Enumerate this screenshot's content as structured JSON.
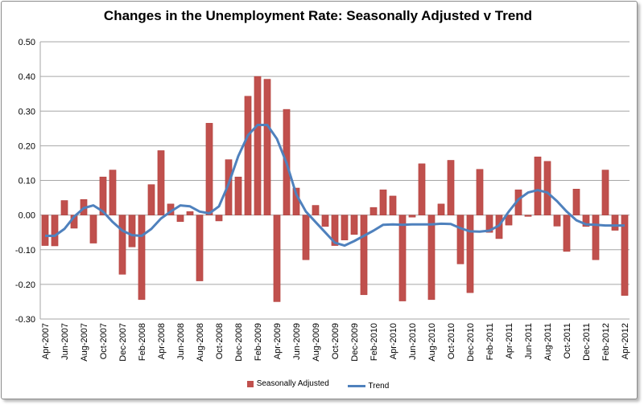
{
  "chart_data": {
    "type": "bar",
    "title": "Changes in the Unemployment Rate: Seasonally Adjusted v Trend",
    "xlabel": "",
    "ylabel": "",
    "ylim": [
      -0.3,
      0.5
    ],
    "yticks": [
      "0.50",
      "0.40",
      "0.30",
      "0.20",
      "0.10",
      "0.00",
      "-0.10",
      "-0.20",
      "-0.30"
    ],
    "ytick_values": [
      0.5,
      0.4,
      0.3,
      0.2,
      0.1,
      0,
      -0.1,
      -0.2,
      -0.3
    ],
    "grid": true,
    "legend_position": "bottom",
    "categories": [
      "Apr-2007",
      "May-2007",
      "Jun-2007",
      "Jul-2007",
      "Aug-2007",
      "Sep-2007",
      "Oct-2007",
      "Nov-2007",
      "Dec-2007",
      "Jan-2008",
      "Feb-2008",
      "Mar-2008",
      "Apr-2008",
      "May-2008",
      "Jun-2008",
      "Jul-2008",
      "Aug-2008",
      "Sep-2008",
      "Oct-2008",
      "Nov-2008",
      "Dec-2008",
      "Jan-2009",
      "Feb-2009",
      "Mar-2009",
      "Apr-2009",
      "May-2009",
      "Jun-2009",
      "Jul-2009",
      "Aug-2009",
      "Sep-2009",
      "Oct-2009",
      "Nov-2009",
      "Dec-2009",
      "Jan-2010",
      "Feb-2010",
      "Mar-2010",
      "Apr-2010",
      "May-2010",
      "Jun-2010",
      "Jul-2010",
      "Aug-2010",
      "Sep-2010",
      "Oct-2010",
      "Nov-2010",
      "Dec-2010",
      "Jan-2011",
      "Feb-2011",
      "Mar-2011",
      "Apr-2011",
      "May-2011",
      "Jun-2011",
      "Jul-2011",
      "Aug-2011",
      "Sep-2011",
      "Oct-2011",
      "Nov-2011",
      "Dec-2011",
      "Jan-2012",
      "Feb-2012",
      "Mar-2012",
      "Apr-2012"
    ],
    "series": [
      {
        "name": "Seasonally Adjusted",
        "type": "bar",
        "color": "#C0504D",
        "values": [
          -0.088,
          -0.089,
          0.042,
          -0.038,
          0.045,
          -0.081,
          0.11,
          0.13,
          -0.171,
          -0.092,
          -0.244,
          0.088,
          0.186,
          0.032,
          -0.019,
          0.01,
          -0.19,
          0.265,
          -0.017,
          0.16,
          0.11,
          0.343,
          0.4,
          0.392,
          -0.25,
          0.305,
          0.078,
          -0.129,
          0.028,
          -0.033,
          -0.088,
          -0.072,
          -0.056,
          -0.23,
          0.022,
          0.073,
          0.055,
          -0.248,
          -0.006,
          0.148,
          -0.244,
          0.032,
          0.158,
          -0.141,
          -0.224,
          0.132,
          -0.05,
          -0.068,
          -0.029,
          0.073,
          -0.004,
          0.168,
          0.155,
          -0.032,
          -0.105,
          0.075,
          -0.033,
          -0.129,
          0.13,
          -0.044,
          -0.232
        ]
      },
      {
        "name": "Trend",
        "type": "line",
        "color": "#4F81BD",
        "values": [
          -0.06,
          -0.06,
          -0.04,
          -0.005,
          0.02,
          0.028,
          0.01,
          -0.02,
          -0.045,
          -0.058,
          -0.06,
          -0.04,
          -0.01,
          0.01,
          0.028,
          0.025,
          0.01,
          0.005,
          0.025,
          0.09,
          0.17,
          0.23,
          0.26,
          0.26,
          0.22,
          0.15,
          0.06,
          0.01,
          -0.02,
          -0.05,
          -0.08,
          -0.088,
          -0.075,
          -0.06,
          -0.045,
          -0.028,
          -0.027,
          -0.028,
          -0.027,
          -0.027,
          -0.027,
          -0.025,
          -0.026,
          -0.038,
          -0.047,
          -0.048,
          -0.045,
          -0.03,
          0.01,
          0.045,
          0.065,
          0.072,
          0.065,
          0.04,
          0.01,
          -0.015,
          -0.027,
          -0.028,
          -0.03,
          -0.03,
          -0.03
        ]
      }
    ]
  }
}
